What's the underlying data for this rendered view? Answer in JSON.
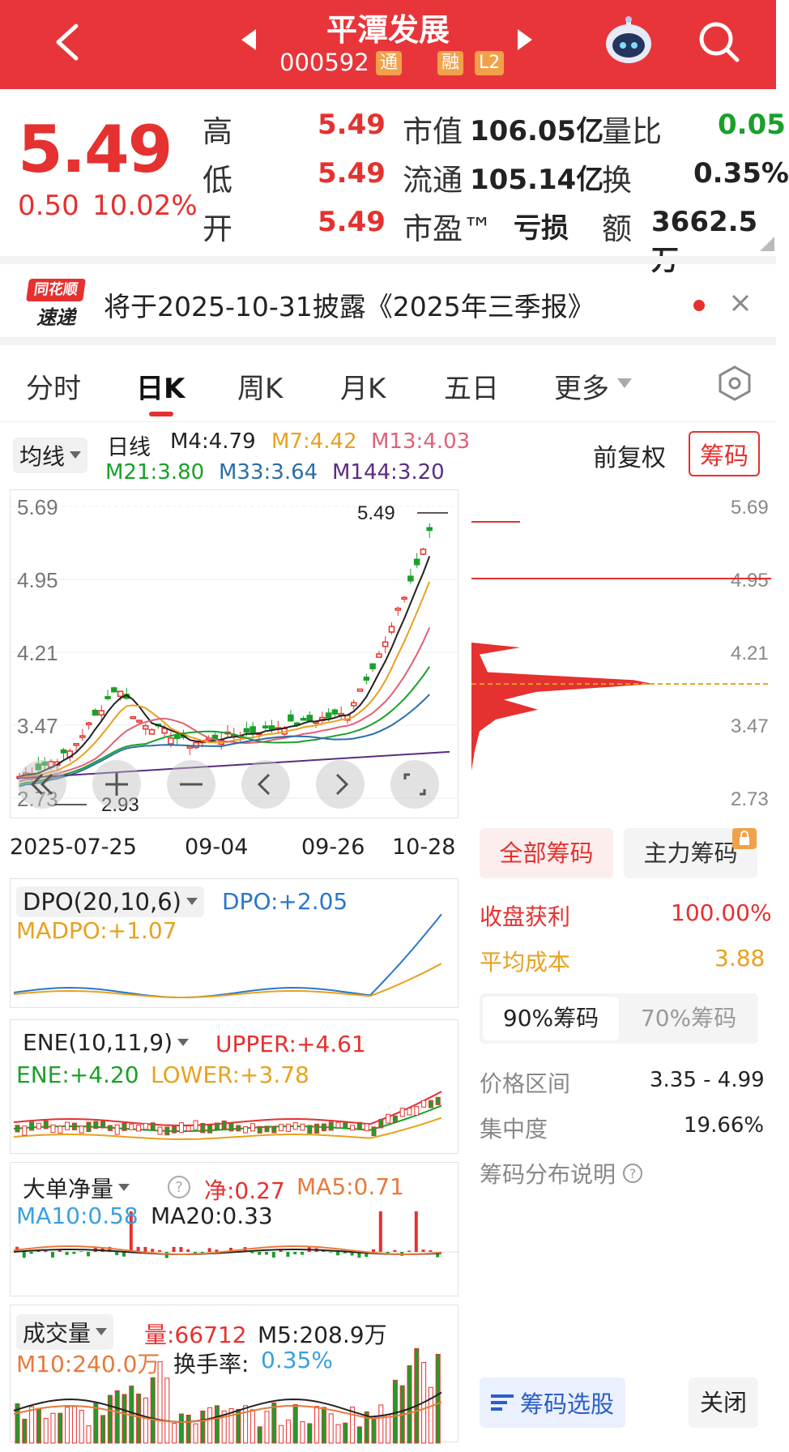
{
  "header": {
    "title": "平潭发展",
    "code": "000592",
    "tag_tong": "通",
    "tag_rong": "融",
    "tag_l2": "L2"
  },
  "quote": {
    "price": "5.49",
    "change": "0.50",
    "change_pct": "10.02%",
    "high_label": "高",
    "high": "5.49",
    "low_label": "低",
    "low": "5.49",
    "open_label": "开",
    "open": "5.49",
    "mcap_label": "市值",
    "mcap": "106.05亿",
    "float_label": "流通",
    "float": "105.14亿",
    "pe_label": "市盈™",
    "pe": "亏损",
    "vr_label": "量比",
    "vr": "0.05",
    "turnover_label": "换",
    "turnover": "0.35%",
    "amount_label": "额",
    "amount": "3662.5万"
  },
  "notice": {
    "logo_top": "同花顺",
    "logo_bottom": "速递",
    "text": "将于2025-10-31披露《2025年三季报》"
  },
  "tabs": [
    "分时",
    "日K",
    "周K",
    "月K",
    "五日",
    "更多"
  ],
  "active_tab": "日K",
  "kline": {
    "ma_selector": "均线",
    "period": "日线",
    "m4": "M4:4.79",
    "m7": "M7:4.42",
    "m13": "M13:4.03",
    "m21": "M21:3.80",
    "m33": "M33:3.64",
    "m144": "M144:3.20",
    "adjust": "前复权",
    "chips_button": "筹码",
    "price_labels": [
      "5.69",
      "4.95",
      "4.21",
      "3.47",
      "2.73"
    ],
    "high_marker": "5.49",
    "low_marker": "2.93",
    "dates": [
      "2025-07-25",
      "09-04",
      "09-26",
      "10-28"
    ],
    "colors": {
      "up": "#e5312f",
      "down": "#1aa02a",
      "m4": "#222222",
      "m7": "#e8a11f",
      "m13": "#e06079",
      "m21": "#1aa02a",
      "m33": "#2a6fa8",
      "m144": "#5a2d80"
    }
  },
  "chips_panel": {
    "tab_all": "全部筹码",
    "tab_main": "主力筹码",
    "profit_label": "收盘获利",
    "profit": "100.00%",
    "avg_cost_label": "平均成本",
    "avg_cost": "3.88",
    "tab_90": "90%筹码",
    "tab_70": "70%筹码",
    "range_label": "价格区间",
    "range": "3.35 - 4.99",
    "concentration_label": "集中度",
    "concentration": "19.66%",
    "explain": "筹码分布说明",
    "select_button": "筹码选股",
    "close_button": "关闭"
  },
  "indicators": {
    "dpo": {
      "name": "DPO(20,10,6)",
      "dpo": "DPO:+2.05",
      "madpo": "MADPO:+1.07"
    },
    "ene": {
      "name": "ENE(10,11,9)",
      "upper": "UPPER:+4.61",
      "ene": "ENE:+4.20",
      "lower": "LOWER:+3.78"
    },
    "bigorder": {
      "name": "大单净量",
      "net": "净:0.27",
      "ma5": "MA5:0.71",
      "ma10": "MA10:0.58",
      "ma20": "MA20:0.33"
    },
    "volume": {
      "name": "成交量",
      "vol": "量:66712",
      "m5": "M5:208.9万",
      "m10": "M10:240.0万",
      "turnover_label": "换手率:",
      "turnover": "0.35%"
    }
  }
}
